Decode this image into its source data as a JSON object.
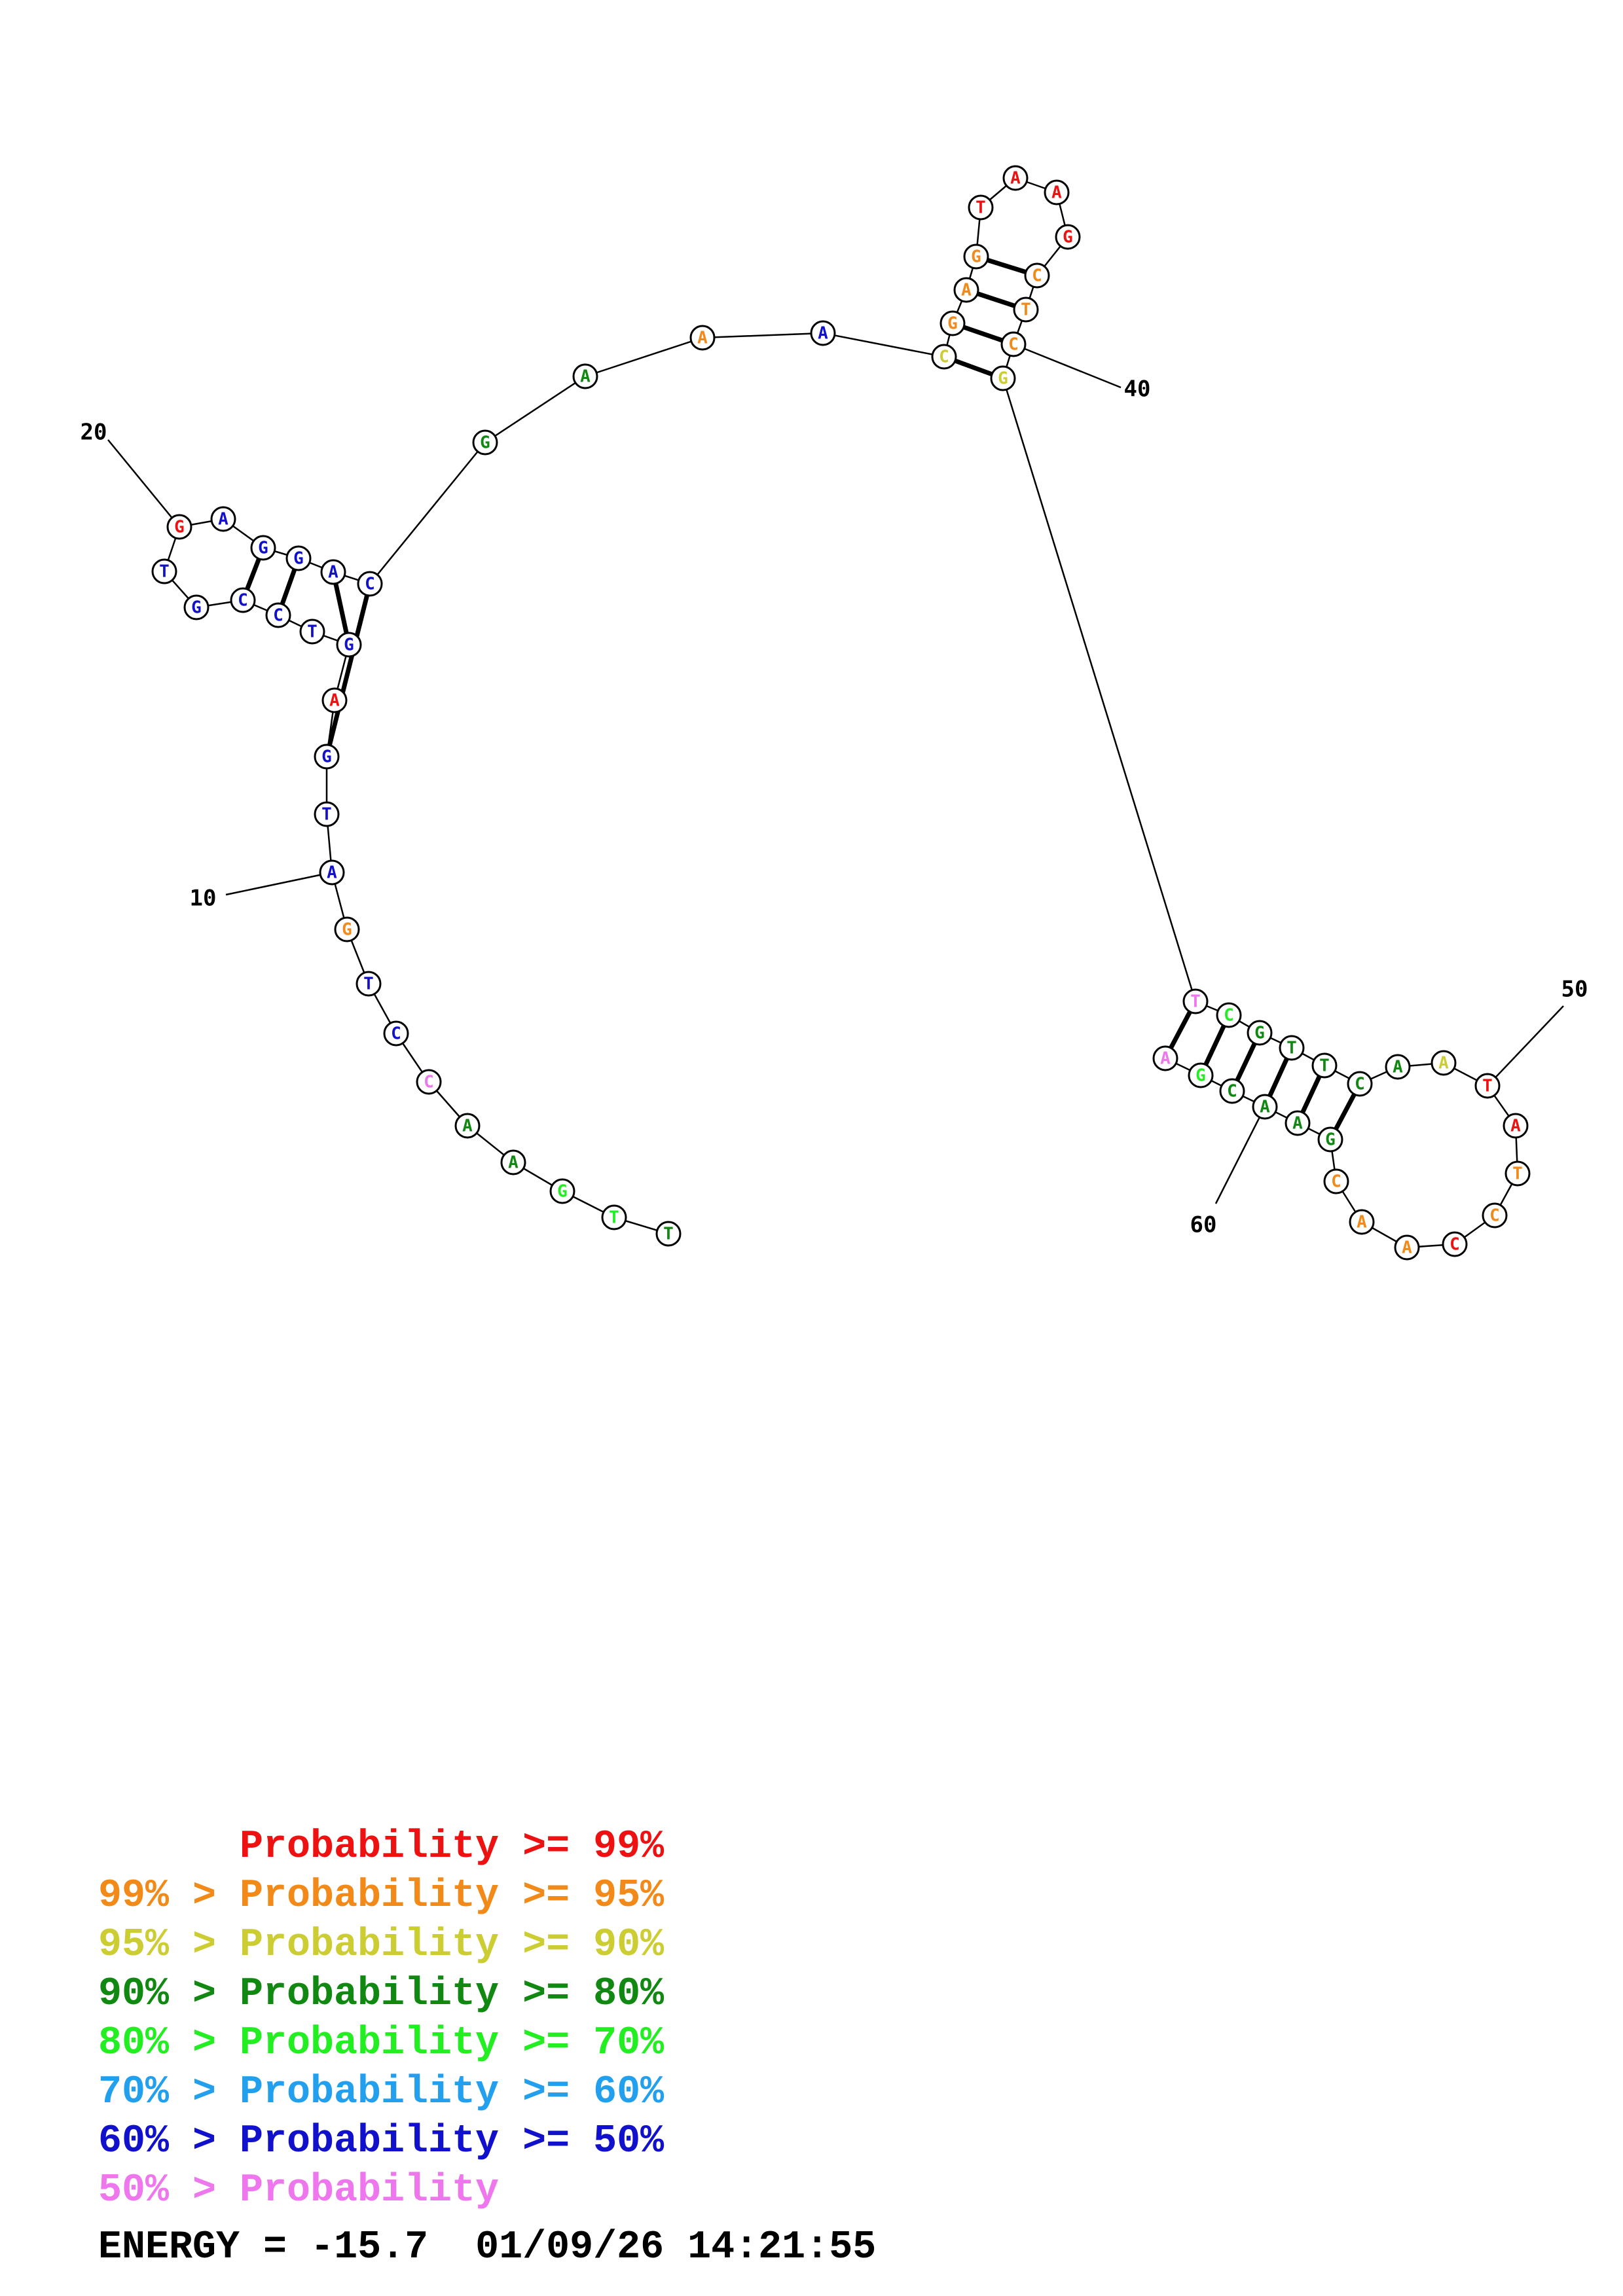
{
  "colors": {
    "p99": "#ee1111",
    "p95": "#f28a1a",
    "p90": "#cccc33",
    "p80": "#118811",
    "p70": "#22ee22",
    "p60": "#22a0ee",
    "p50": "#1111cc",
    "plow": "#ee77ee"
  },
  "sequence": [
    {
      "n": 1,
      "base": "T",
      "tier": "p80"
    },
    {
      "n": 2,
      "base": "T",
      "tier": "p70"
    },
    {
      "n": 3,
      "base": "G",
      "tier": "p70"
    },
    {
      "n": 4,
      "base": "A",
      "tier": "p80"
    },
    {
      "n": 5,
      "base": "A",
      "tier": "p80"
    },
    {
      "n": 6,
      "base": "C",
      "tier": "plow"
    },
    {
      "n": 7,
      "base": "C",
      "tier": "p50"
    },
    {
      "n": 8,
      "base": "T",
      "tier": "p50"
    },
    {
      "n": 9,
      "base": "G",
      "tier": "p95"
    },
    {
      "n": 10,
      "base": "A",
      "tier": "p50"
    },
    {
      "n": 11,
      "base": "T",
      "tier": "p50"
    },
    {
      "n": 12,
      "base": "G",
      "tier": "p50"
    },
    {
      "n": 13,
      "base": "A",
      "tier": "p99"
    },
    {
      "n": 14,
      "base": "G",
      "tier": "p50"
    },
    {
      "n": 15,
      "base": "T",
      "tier": "p50"
    },
    {
      "n": 16,
      "base": "C",
      "tier": "p50"
    },
    {
      "n": 17,
      "base": "C",
      "tier": "p50"
    },
    {
      "n": 18,
      "base": "G",
      "tier": "p50"
    },
    {
      "n": 19,
      "base": "T",
      "tier": "p50"
    },
    {
      "n": 20,
      "base": "G",
      "tier": "p99"
    },
    {
      "n": 21,
      "base": "A",
      "tier": "p50"
    },
    {
      "n": 22,
      "base": "G",
      "tier": "p50"
    },
    {
      "n": 23,
      "base": "G",
      "tier": "p50"
    },
    {
      "n": 24,
      "base": "A",
      "tier": "p50"
    },
    {
      "n": 25,
      "base": "C",
      "tier": "p50"
    },
    {
      "n": 26,
      "base": "G",
      "tier": "p80"
    },
    {
      "n": 27,
      "base": "A",
      "tier": "p80"
    },
    {
      "n": 28,
      "base": "A",
      "tier": "p95"
    },
    {
      "n": 29,
      "base": "A",
      "tier": "p50"
    },
    {
      "n": 30,
      "base": "C",
      "tier": "p90"
    },
    {
      "n": 31,
      "base": "G",
      "tier": "p95"
    },
    {
      "n": 32,
      "base": "A",
      "tier": "p95"
    },
    {
      "n": 33,
      "base": "G",
      "tier": "p95"
    },
    {
      "n": 34,
      "base": "T",
      "tier": "p99"
    },
    {
      "n": 35,
      "base": "A",
      "tier": "p99"
    },
    {
      "n": 36,
      "base": "A",
      "tier": "p99"
    },
    {
      "n": 37,
      "base": "G",
      "tier": "p99"
    },
    {
      "n": 38,
      "base": "C",
      "tier": "p95"
    },
    {
      "n": 39,
      "base": "T",
      "tier": "p95"
    },
    {
      "n": 40,
      "base": "C",
      "tier": "p95"
    },
    {
      "n": 41,
      "base": "G",
      "tier": "p90"
    },
    {
      "n": 42,
      "base": "T",
      "tier": "plow"
    },
    {
      "n": 43,
      "base": "C",
      "tier": "p70"
    },
    {
      "n": 44,
      "base": "G",
      "tier": "p80"
    },
    {
      "n": 45,
      "base": "T",
      "tier": "p80"
    },
    {
      "n": 46,
      "base": "T",
      "tier": "p80"
    },
    {
      "n": 47,
      "base": "C",
      "tier": "p80"
    },
    {
      "n": 48,
      "base": "A",
      "tier": "p80"
    },
    {
      "n": 49,
      "base": "A",
      "tier": "p90"
    },
    {
      "n": 50,
      "base": "T",
      "tier": "p99"
    },
    {
      "n": 51,
      "base": "A",
      "tier": "p99"
    },
    {
      "n": 52,
      "base": "T",
      "tier": "p95"
    },
    {
      "n": 53,
      "base": "C",
      "tier": "p95"
    },
    {
      "n": 54,
      "base": "C",
      "tier": "p99"
    },
    {
      "n": 55,
      "base": "A",
      "tier": "p95"
    },
    {
      "n": 56,
      "base": "A",
      "tier": "p95"
    },
    {
      "n": 57,
      "base": "C",
      "tier": "p95"
    },
    {
      "n": 58,
      "base": "G",
      "tier": "p80"
    },
    {
      "n": 59,
      "base": "A",
      "tier": "p80"
    },
    {
      "n": 60,
      "base": "A",
      "tier": "p80"
    },
    {
      "n": 61,
      "base": "C",
      "tier": "p80"
    },
    {
      "n": 62,
      "base": "G",
      "tier": "p70"
    },
    {
      "n": 63,
      "base": "A",
      "tier": "plow"
    }
  ],
  "pairs": [
    [
      12,
      25
    ],
    [
      14,
      24
    ],
    [
      16,
      23
    ],
    [
      17,
      22
    ],
    [
      30,
      41
    ],
    [
      31,
      40
    ],
    [
      32,
      39
    ],
    [
      33,
      38
    ],
    [
      42,
      63
    ],
    [
      43,
      62
    ],
    [
      44,
      61
    ],
    [
      45,
      60
    ],
    [
      46,
      59
    ],
    [
      47,
      58
    ]
  ],
  "position_labels": [
    {
      "n": 10,
      "text": "10"
    },
    {
      "n": 20,
      "text": "20"
    },
    {
      "n": 40,
      "text": "40"
    },
    {
      "n": 50,
      "text": "50"
    },
    {
      "n": 60,
      "text": "60"
    }
  ],
  "legend": [
    {
      "prefix": "",
      "label": "Probability",
      "suffix": " >= 99%",
      "tier": "p99"
    },
    {
      "prefix": "99% > ",
      "label": "Probability",
      "suffix": " >= 95%",
      "tier": "p95"
    },
    {
      "prefix": "95% > ",
      "label": "Probability",
      "suffix": " >= 90%",
      "tier": "p90"
    },
    {
      "prefix": "90% > ",
      "label": "Probability",
      "suffix": " >= 80%",
      "tier": "p80"
    },
    {
      "prefix": "80% > ",
      "label": "Probability",
      "suffix": " >= 70%",
      "tier": "p70"
    },
    {
      "prefix": "70% > ",
      "label": "Probability",
      "suffix": " >= 60%",
      "tier": "p60"
    },
    {
      "prefix": "60% > ",
      "label": "Probability",
      "suffix": " >= 50%",
      "tier": "p50"
    },
    {
      "prefix": "50% > ",
      "label": "Probability",
      "suffix": "",
      "tier": "plow"
    }
  ],
  "energy": {
    "label": "ENERGY = ",
    "value": "-15.7",
    "timestamp": "01/09/26 14:21:55"
  }
}
